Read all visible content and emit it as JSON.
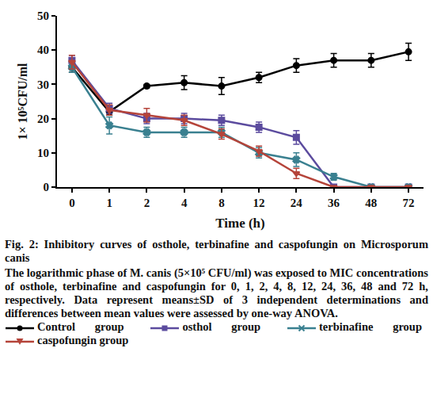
{
  "chart_data": {
    "type": "line",
    "title": "Fig. 2: Inhibitory curves of osthole, terbinafine and caspofungin on Microsporum canis",
    "subtitle": "The logarithmic phase of M. canis (5×10⁵ CFU/ml) was exposed to MIC concentrations of osthole, terbinafine and caspofungin for 0, 1, 2, 4, 8, 12, 24, 36, 48 and 72 h, respectively. Data represent means±SD of 3 independent determinations and differences between mean values were assessed by one-way ANOVA.",
    "x_label": "Time (h)",
    "y_label": "1× 10⁵CFU/ml",
    "categories": [
      "0",
      "1",
      "2",
      "4",
      "8",
      "12",
      "24",
      "36",
      "48",
      "72"
    ],
    "ylim": [
      0,
      50
    ],
    "yticks": [
      0,
      10,
      20,
      30,
      40,
      50
    ],
    "grid": false,
    "series": [
      {
        "name": "Control group",
        "color": "#000000",
        "marker": "circle",
        "values": [
          35,
          22,
          29.5,
          30.5,
          29.5,
          32,
          35.5,
          37,
          37,
          39.5
        ],
        "errors": [
          1.5,
          1,
          0.5,
          2,
          2.5,
          1.5,
          2,
          2,
          2,
          2.5
        ]
      },
      {
        "name": "osthol group",
        "color": "#5b4b9e",
        "marker": "square",
        "values": [
          37,
          23,
          20,
          20,
          19.5,
          17.5,
          14.5,
          0,
          0,
          0
        ],
        "errors": [
          1.5,
          1.5,
          1.5,
          1.5,
          1.5,
          1.5,
          2,
          0,
          0,
          0
        ]
      },
      {
        "name": "terbinafine group",
        "color": "#3a8090",
        "marker": "x",
        "values": [
          35,
          18,
          16,
          16,
          16,
          10,
          8,
          3,
          0,
          0
        ],
        "errors": [
          1.5,
          2.5,
          1.5,
          1.5,
          1.5,
          1.5,
          2,
          1,
          0,
          0
        ]
      },
      {
        "name": "caspofungin group",
        "color": "#b5443a",
        "marker": "triangle-down",
        "values": [
          36.5,
          22.5,
          21,
          19.5,
          15.5,
          10.5,
          4,
          0,
          0,
          0
        ],
        "errors": [
          2,
          1.5,
          2,
          1.5,
          1.5,
          1.5,
          1.5,
          0,
          0,
          0
        ]
      }
    ]
  }
}
